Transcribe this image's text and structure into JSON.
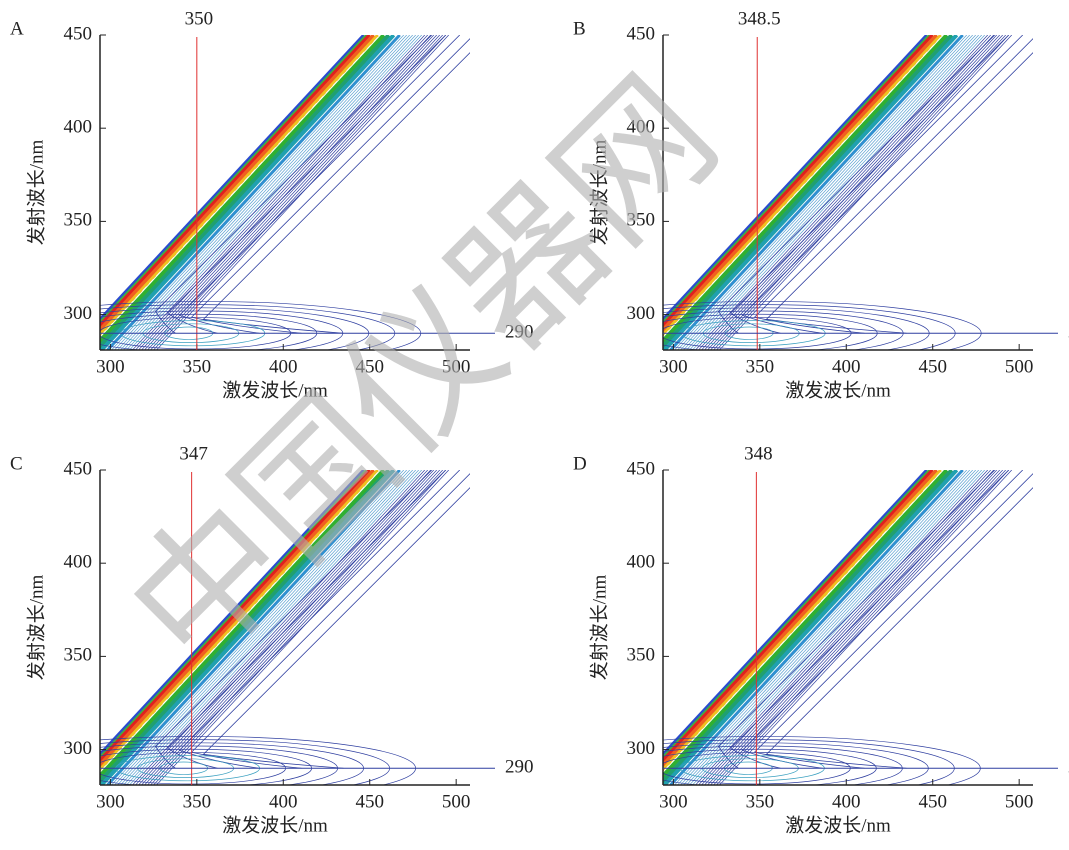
{
  "watermark": "中国仪器网",
  "chart_data": [
    {
      "type": "contour",
      "panel": "A",
      "xlabel": "激发波长/nm",
      "ylabel": "发射波长/nm",
      "xlim": [
        294,
        508
      ],
      "ylim": [
        281,
        450
      ],
      "xticks": [
        300,
        350,
        400,
        450,
        500
      ],
      "yticks": [
        300,
        350,
        400,
        450
      ],
      "vline": 350,
      "hline": 290,
      "line_color": "#e03030",
      "contour_color": "#2f3fa0"
    },
    {
      "type": "contour",
      "panel": "B",
      "xlabel": "激发波长/nm",
      "ylabel": "发射波长/nm",
      "xlim": [
        294,
        508
      ],
      "ylim": [
        281,
        450
      ],
      "xticks": [
        300,
        350,
        400,
        450,
        500
      ],
      "yticks": [
        300,
        350,
        400,
        450
      ],
      "vline": 348.5,
      "hline": 290,
      "line_color": "#e03030",
      "contour_color": "#2f3fa0"
    },
    {
      "type": "contour",
      "panel": "C",
      "xlabel": "激发波长/nm",
      "ylabel": "发射波长/nm",
      "xlim": [
        294,
        508
      ],
      "ylim": [
        281,
        450
      ],
      "xticks": [
        300,
        350,
        400,
        450,
        500
      ],
      "yticks": [
        300,
        350,
        400,
        450
      ],
      "vline": 347,
      "hline": 290,
      "line_color": "#e03030",
      "contour_color": "#2f3fa0"
    },
    {
      "type": "contour",
      "panel": "D",
      "xlabel": "激发波长/nm",
      "ylabel": "发射波长/nm",
      "xlim": [
        294,
        508
      ],
      "ylim": [
        281,
        450
      ],
      "xticks": [
        300,
        350,
        400,
        450,
        500
      ],
      "yticks": [
        300,
        350,
        400,
        450
      ],
      "vline": 348,
      "hline": 290,
      "line_color": "#e03030",
      "contour_color": "#2f3fa0"
    }
  ]
}
